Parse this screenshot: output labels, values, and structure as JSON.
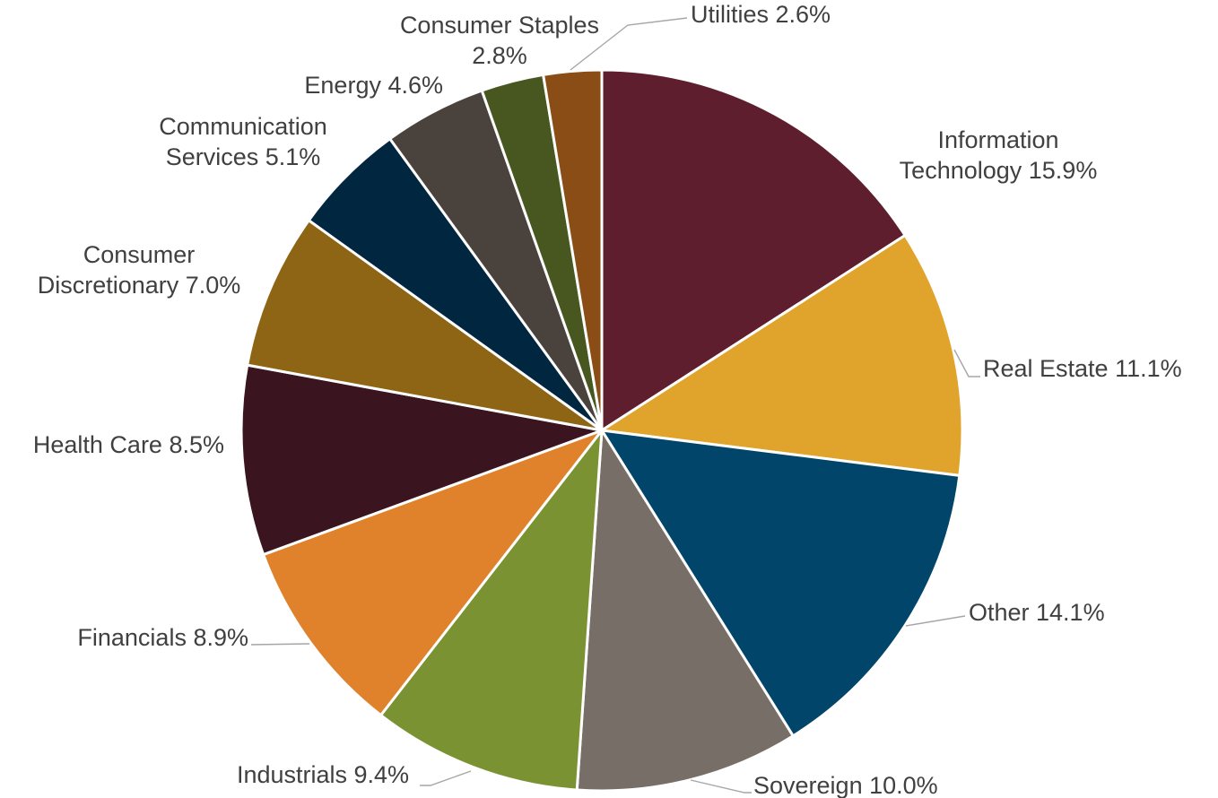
{
  "chart_data": {
    "type": "pie",
    "title": "",
    "start_angle_deg": 0,
    "direction": "clockwise",
    "slices": [
      {
        "name": "Information Technology",
        "value": 15.9,
        "label_lines": [
          "Information",
          "Technology 15.9%"
        ],
        "color": "#5E1E2E"
      },
      {
        "name": "Real Estate",
        "value": 11.1,
        "label_lines": [
          "Real Estate 11.1%"
        ],
        "color": "#E0A42C"
      },
      {
        "name": "Other",
        "value": 14.1,
        "label_lines": [
          "Other 14.1%"
        ],
        "color": "#02456A"
      },
      {
        "name": "Sovereign",
        "value": 10.0,
        "label_lines": [
          "Sovereign 10.0%"
        ],
        "color": "#776E67"
      },
      {
        "name": "Industrials",
        "value": 9.4,
        "label_lines": [
          "Industrials 9.4%"
        ],
        "color": "#7A9232"
      },
      {
        "name": "Financials",
        "value": 8.9,
        "label_lines": [
          "Financials 8.9%"
        ],
        "color": "#E0822C"
      },
      {
        "name": "Health Care",
        "value": 8.5,
        "label_lines": [
          "Health Care 8.5%"
        ],
        "color": "#3A141E"
      },
      {
        "name": "Consumer Discretionary",
        "value": 7.0,
        "label_lines": [
          "Consumer",
          "Discretionary 7.0%"
        ],
        "color": "#8E6514"
      },
      {
        "name": "Communication Services",
        "value": 5.1,
        "label_lines": [
          "Communication",
          "Services 5.1%"
        ],
        "color": "#01263F"
      },
      {
        "name": "Energy",
        "value": 4.6,
        "label_lines": [
          "Energy 4.6%"
        ],
        "color": "#4A423C"
      },
      {
        "name": "Consumer Staples",
        "value": 2.8,
        "label_lines": [
          "Consumer Staples",
          "2.8%"
        ],
        "color": "#48571F"
      },
      {
        "name": "Utilities",
        "value": 2.6,
        "label_lines": [
          "Utilities 2.6%"
        ],
        "color": "#8A4D16"
      }
    ]
  }
}
